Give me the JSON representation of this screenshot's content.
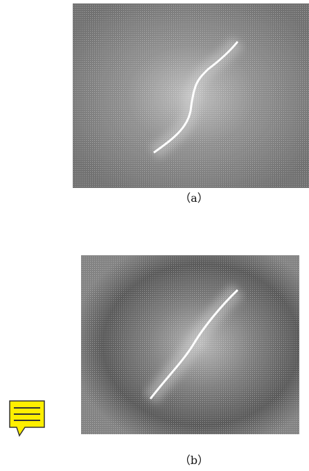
{
  "figures": [
    {
      "caption": "（a）"
    },
    {
      "caption": "（b）"
    }
  ]
}
